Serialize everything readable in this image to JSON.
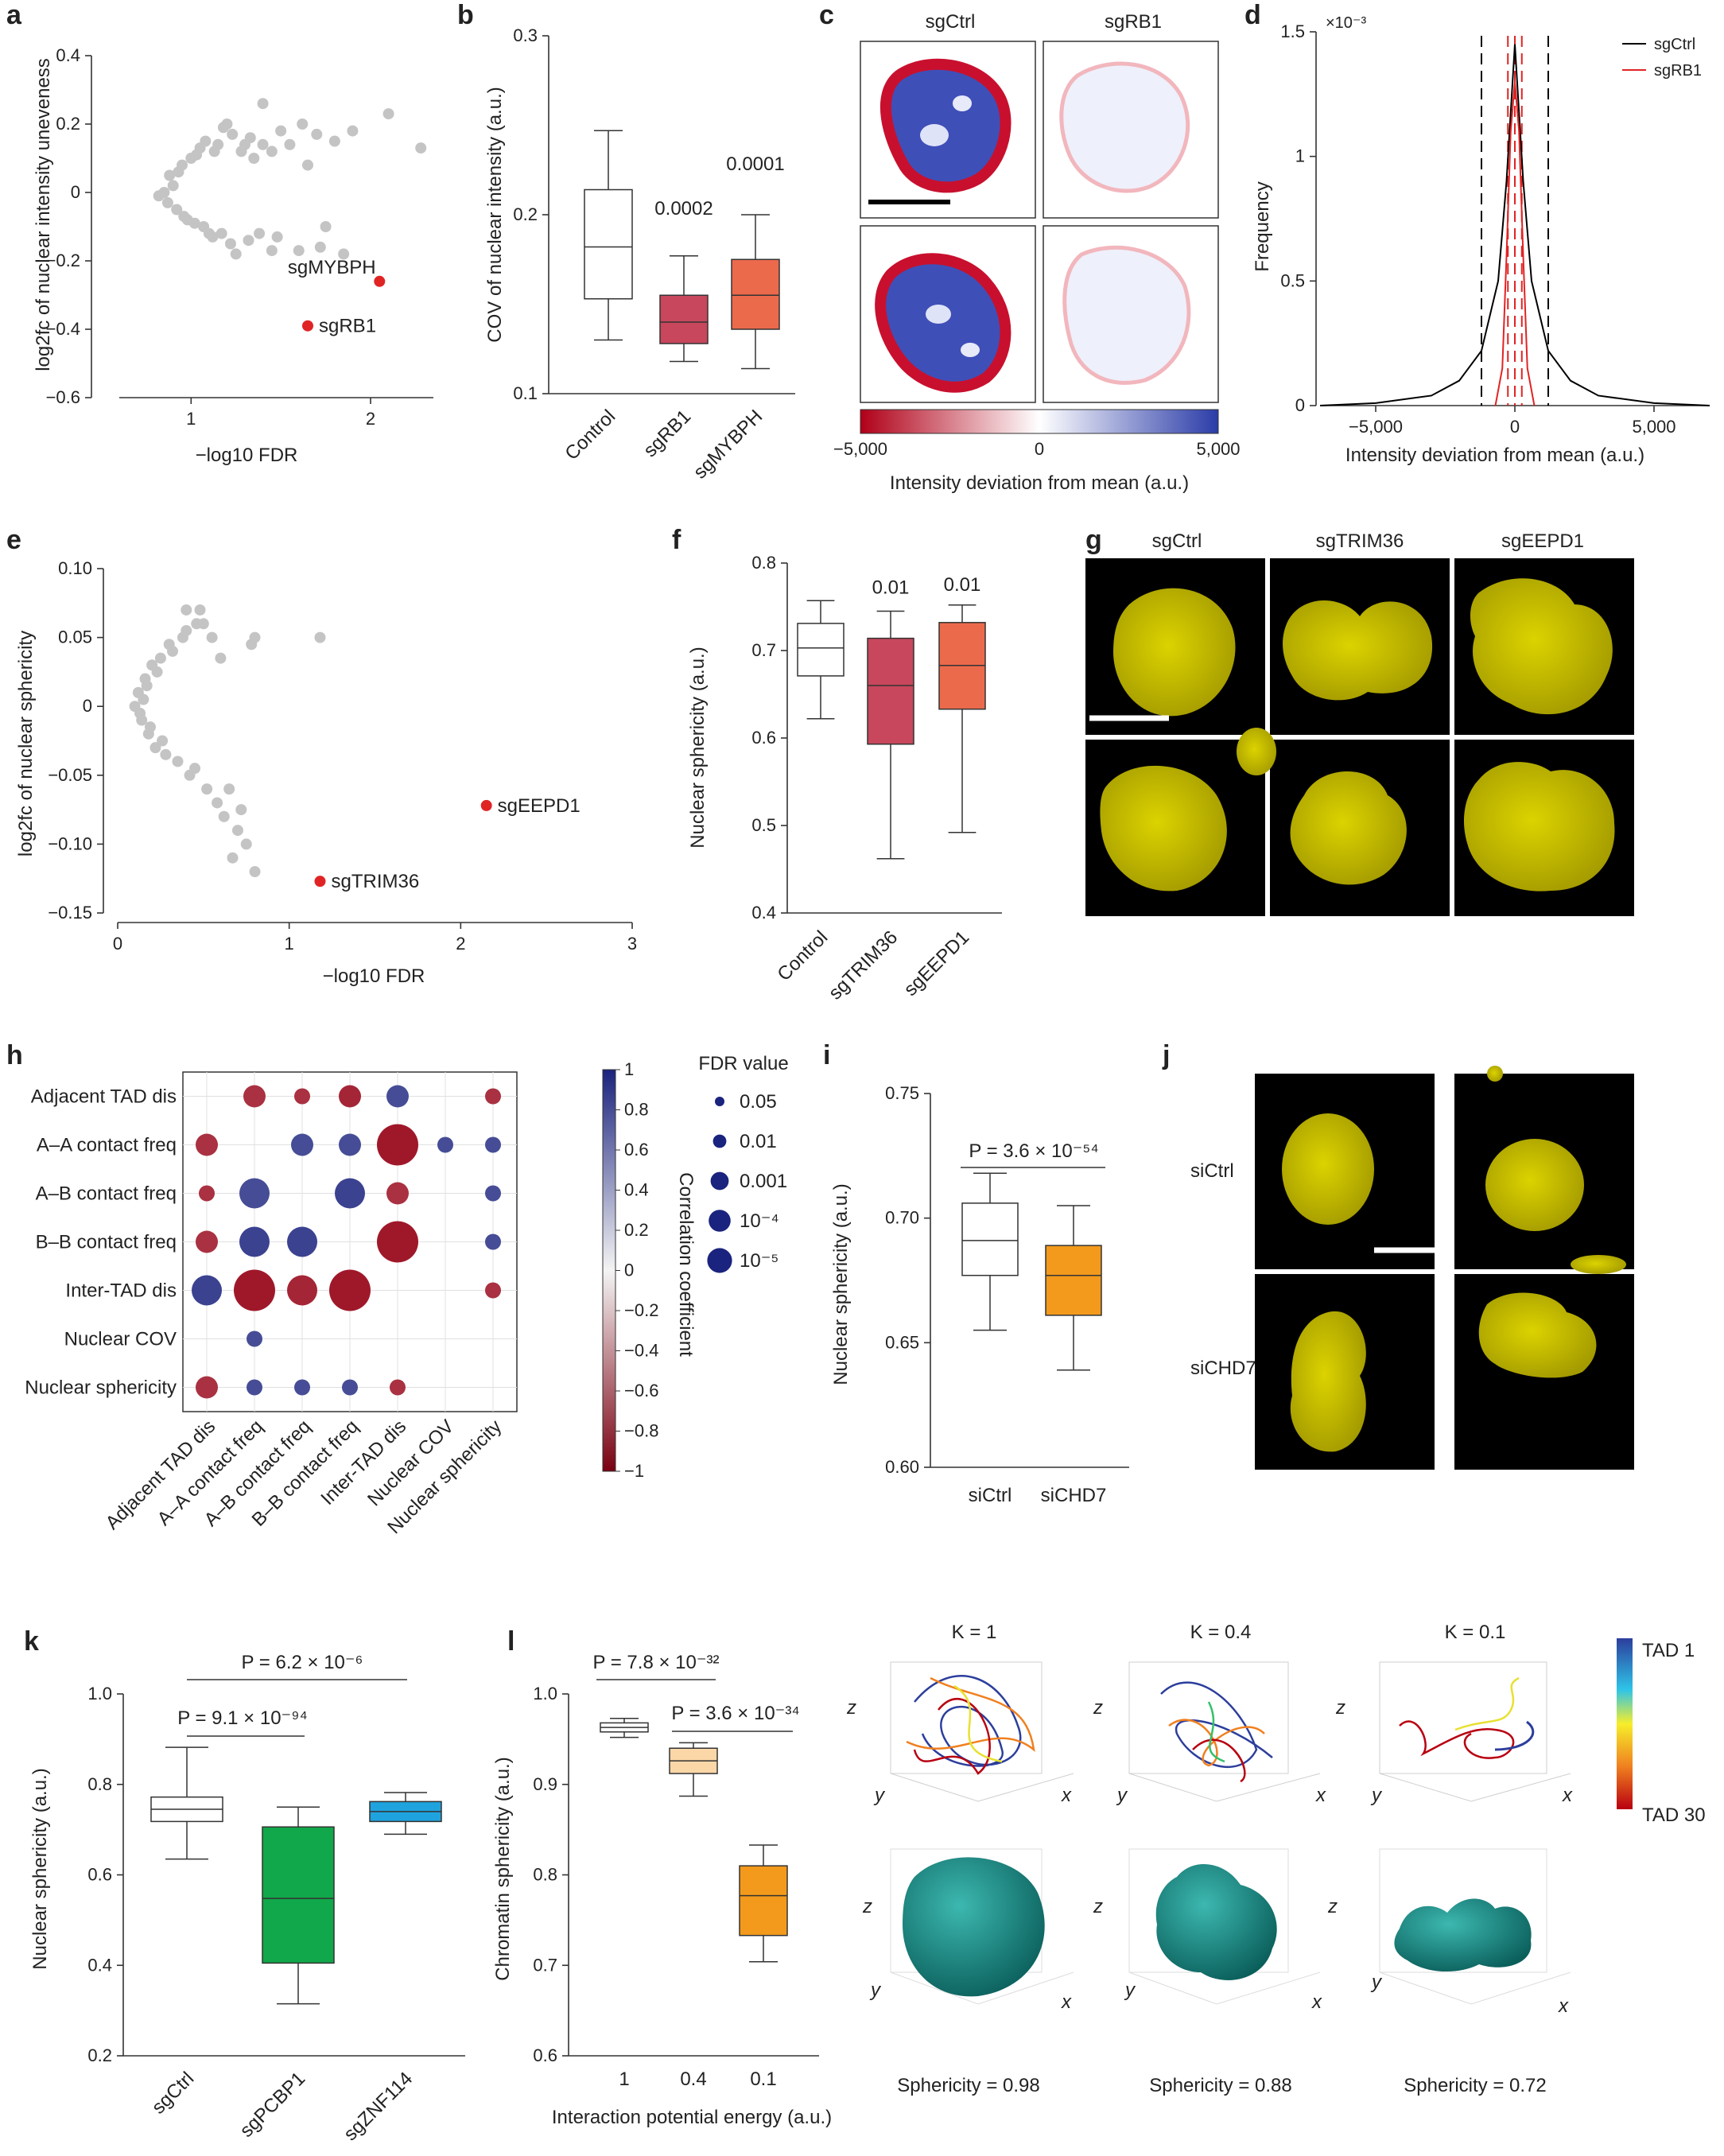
{
  "colors": {
    "grey_point": "#c4c4c4",
    "hit": "#e02424",
    "box_rb1": "#c8475c",
    "box_mybph": "#ec6a4c",
    "box_chd7": "#f39a1c",
    "box_pcbp1": "#10a84a",
    "box_znf114": "#1fa3de",
    "teal": "#16807c",
    "sgctrl_line": "#000000",
    "sgrb1_line": "#e02424"
  },
  "panels": {
    "a": {
      "label": "a",
      "ylabel": "log2fc of nuclear intensity uneveness",
      "xlabel": "−log10 FDR",
      "hits": [
        {
          "name": "sgMYBPH"
        },
        {
          "name": "sgRB1"
        }
      ],
      "xticks": [
        "1",
        "2"
      ],
      "yticks": [
        "0.4",
        "0.2",
        "0",
        "−0.2",
        "−0.4",
        "−0.6"
      ]
    },
    "b": {
      "label": "b",
      "ylabel": "COV of nuclear intensity (a.u.)",
      "yticks": [
        "0.3",
        "0.2",
        "0.1"
      ],
      "pvals": [
        "0.0002",
        "0.0001"
      ]
    },
    "c": {
      "label": "c",
      "cols": [
        "sgCtrl",
        "sgRB1"
      ],
      "cbar_ticks": [
        "−5,000",
        "0",
        "5,000"
      ],
      "cbar_label": "Intensity deviation from mean (a.u.)"
    },
    "d": {
      "label": "d",
      "ylabel": "Frequency",
      "xlabel": "Intensity deviation from mean (a.u.)",
      "multiplier": "×10⁻³",
      "yticks": [
        "1.5",
        "1",
        "0.5",
        "0"
      ],
      "xticks": [
        "−5,000",
        "0",
        "5,000"
      ],
      "legend": [
        "sgCtrl",
        "sgRB1"
      ]
    },
    "e": {
      "label": "e",
      "ylabel": "log2fc of nuclear sphericity",
      "xlabel": "−log10 FDR",
      "hits": [
        {
          "name": "sgEEPD1"
        },
        {
          "name": "sgTRIM36"
        }
      ],
      "xticks": [
        "0",
        "1",
        "2",
        "3"
      ],
      "yticks": [
        "0.10",
        "0.05",
        "0",
        "−0.05",
        "−0.10",
        "−0.15"
      ]
    },
    "f": {
      "label": "f",
      "ylabel": "Nuclear sphericity (a.u.)",
      "yticks": [
        "0.8",
        "0.7",
        "0.6",
        "0.5",
        "0.4"
      ],
      "pvals": [
        "0.01",
        "0.01"
      ]
    },
    "g": {
      "label": "g",
      "cols": [
        "sgCtrl",
        "sgTRIM36",
        "sgEEPD1"
      ]
    },
    "h": {
      "label": "h",
      "rows": [
        "Adjacent TAD dis",
        "A–A contact freq",
        "A–B contact freq",
        "B–B contact freq",
        "Inter-TAD dis",
        "Nuclear COV",
        "Nuclear sphericity"
      ],
      "cols": [
        "Adjacent TAD dis",
        "A–A contact freq",
        "A–B contact freq",
        "B–B contact freq",
        "Inter-TAD dis",
        "Nuclear COV",
        "Nuclear sphericity"
      ],
      "cbar_ticks": [
        "1",
        "0.8",
        "0.6",
        "0.4",
        "0.2",
        "0",
        "−0.2",
        "−0.4",
        "−0.6",
        "−0.8",
        "−1"
      ],
      "cbar_label": "Correlation coefficient",
      "fdr_title": "FDR value",
      "fdr_levels": [
        "0.05",
        "0.01",
        "0.001",
        "10⁻⁴",
        "10⁻⁵"
      ]
    },
    "i": {
      "label": "i",
      "ylabel": "Nuclear sphericity (a.u.)",
      "yticks": [
        "0.75",
        "0.70",
        "0.65",
        "0.60"
      ],
      "pval": "P = 3.6 × 10⁻⁵⁴"
    },
    "j": {
      "label": "j",
      "rows": [
        "siCtrl",
        "siCHD7"
      ]
    },
    "k": {
      "label": "k",
      "ylabel": "Nuclear sphericity (a.u.)",
      "yticks": [
        "1.0",
        "0.8",
        "0.6",
        "0.4",
        "0.2"
      ],
      "pvals": [
        "P = 6.2 × 10⁻⁶",
        "P = 9.1 × 10⁻⁹⁴"
      ]
    },
    "l": {
      "label": "l",
      "ylabel": "Chromatin sphericity (a.u.)",
      "xlabel": "Interaction potential energy (a.u.)",
      "yticks": [
        "1.0",
        "0.9",
        "0.8",
        "0.7",
        "0.6"
      ],
      "pvals": [
        "P = 7.8 × 10⁻³²",
        "P = 3.6 × 10⁻³⁴"
      ]
    },
    "sim": {
      "titles": [
        "K = 1",
        "K = 0.4",
        "K = 0.1"
      ],
      "sphericity": [
        "Sphericity = 0.98",
        "Sphericity = 0.88",
        "Sphericity = 0.72"
      ],
      "tad_top": "TAD 1",
      "tad_bottom": "TAD 30"
    }
  },
  "chart_data": [
    {
      "type": "scatter",
      "panel": "a",
      "xlabel": "−log10 FDR",
      "ylabel": "log2fc of nuclear intensity uneveness",
      "xlim": [
        0.6,
        2.35
      ],
      "ylim": [
        -0.6,
        0.4
      ],
      "highlight": [
        {
          "name": "sgMYBPH",
          "x": 2.05,
          "y": -0.26
        },
        {
          "name": "sgRB1",
          "x": 1.65,
          "y": -0.39
        }
      ],
      "points": [
        [
          0.9,
          0.02
        ],
        [
          0.85,
          0.0
        ],
        [
          0.82,
          -0.01
        ],
        [
          0.88,
          0.05
        ],
        [
          0.92,
          -0.05
        ],
        [
          0.95,
          0.08
        ],
        [
          1.0,
          0.1
        ],
        [
          0.98,
          -0.08
        ],
        [
          1.02,
          -0.09
        ],
        [
          1.05,
          0.13
        ],
        [
          1.08,
          0.15
        ],
        [
          1.1,
          -0.12
        ],
        [
          1.12,
          -0.13
        ],
        [
          1.15,
          0.14
        ],
        [
          1.18,
          0.19
        ],
        [
          1.2,
          0.2
        ],
        [
          1.22,
          -0.15
        ],
        [
          1.25,
          -0.18
        ],
        [
          1.28,
          0.12
        ],
        [
          1.3,
          0.14
        ],
        [
          1.32,
          -0.14
        ],
        [
          1.35,
          0.1
        ],
        [
          1.4,
          0.14
        ],
        [
          1.45,
          0.12
        ],
        [
          1.48,
          -0.13
        ],
        [
          1.5,
          0.18
        ],
        [
          1.55,
          0.14
        ],
        [
          1.6,
          -0.17
        ],
        [
          1.62,
          0.2
        ],
        [
          1.65,
          0.08
        ],
        [
          1.7,
          0.17
        ],
        [
          1.72,
          -0.16
        ],
        [
          1.75,
          -0.1
        ],
        [
          1.8,
          0.15
        ],
        [
          1.85,
          -0.18
        ],
        [
          1.9,
          0.18
        ],
        [
          2.1,
          0.23
        ],
        [
          2.28,
          0.13
        ],
        [
          1.4,
          0.26
        ],
        [
          1.45,
          -0.17
        ],
        [
          0.87,
          -0.03
        ],
        [
          0.93,
          0.06
        ],
        [
          0.96,
          -0.07
        ],
        [
          1.03,
          0.11
        ],
        [
          1.07,
          -0.1
        ],
        [
          1.13,
          0.12
        ],
        [
          1.17,
          -0.12
        ],
        [
          1.23,
          0.17
        ],
        [
          1.33,
          0.16
        ],
        [
          1.38,
          -0.12
        ]
      ]
    },
    {
      "type": "box",
      "panel": "b",
      "categories": [
        "Control",
        "sgRB1",
        "sgMYBPH"
      ],
      "ylabel": "COV of nuclear intensity (a.u.)",
      "ylim": [
        0.1,
        0.3
      ],
      "boxes": [
        {
          "whislo": 0.13,
          "q1": 0.153,
          "med": 0.182,
          "q3": 0.214,
          "whishi": 0.247
        },
        {
          "whislo": 0.118,
          "q1": 0.128,
          "med": 0.14,
          "q3": 0.155,
          "whishi": 0.177
        },
        {
          "whislo": 0.114,
          "q1": 0.136,
          "med": 0.155,
          "q3": 0.175,
          "whishi": 0.2
        }
      ]
    },
    {
      "type": "line",
      "panel": "d",
      "xlabel": "Intensity deviation from mean (a.u.)",
      "ylabel": "Frequency",
      "xlim": [
        -7000,
        7000
      ],
      "ylim": [
        0,
        0.0015
      ],
      "series": [
        {
          "name": "sgCtrl",
          "x": [
            -7000,
            -5000,
            -3000,
            -2000,
            -1200,
            -600,
            -300,
            0,
            300,
            600,
            1200,
            2000,
            3000,
            5000,
            7000
          ],
          "y": [
            0.0,
            1e-05,
            4e-05,
            0.0001,
            0.00022,
            0.0005,
            0.0009,
            0.00145,
            0.0009,
            0.0005,
            0.00022,
            0.0001,
            4e-05,
            1e-05,
            0.0
          ]
        },
        {
          "name": "sgRB1",
          "x": [
            -700,
            -450,
            -300,
            -150,
            0,
            150,
            300,
            450,
            700
          ],
          "y": [
            0.0,
            0.00015,
            0.0006,
            0.0011,
            0.0013,
            0.0011,
            0.0006,
            0.00015,
            0.0
          ]
        }
      ],
      "vlines": [
        -1200,
        1200,
        -250,
        250,
        0
      ]
    },
    {
      "type": "scatter",
      "panel": "e",
      "xlabel": "−log10 FDR",
      "ylabel": "log2fc of nuclear sphericity",
      "xlim": [
        0,
        3
      ],
      "ylim": [
        -0.15,
        0.1
      ],
      "highlight": [
        {
          "name": "sgEEPD1",
          "x": 2.15,
          "y": -0.072
        },
        {
          "name": "sgTRIM36",
          "x": 1.18,
          "y": -0.127
        }
      ],
      "points": [
        [
          0.1,
          0.0
        ],
        [
          0.12,
          0.01
        ],
        [
          0.14,
          -0.01
        ],
        [
          0.16,
          0.02
        ],
        [
          0.18,
          -0.02
        ],
        [
          0.2,
          0.03
        ],
        [
          0.22,
          -0.03
        ],
        [
          0.25,
          0.035
        ],
        [
          0.28,
          -0.035
        ],
        [
          0.3,
          0.045
        ],
        [
          0.35,
          -0.04
        ],
        [
          0.38,
          0.05
        ],
        [
          0.4,
          0.055
        ],
        [
          0.45,
          -0.045
        ],
        [
          0.5,
          0.06
        ],
        [
          0.52,
          -0.06
        ],
        [
          0.55,
          0.05
        ],
        [
          0.58,
          -0.07
        ],
        [
          0.6,
          0.035
        ],
        [
          0.62,
          -0.08
        ],
        [
          0.65,
          -0.06
        ],
        [
          0.7,
          -0.09
        ],
        [
          0.75,
          -0.1
        ],
        [
          0.8,
          -0.12
        ],
        [
          0.78,
          0.045
        ],
        [
          0.8,
          0.05
        ],
        [
          0.48,
          0.07
        ],
        [
          0.4,
          0.07
        ],
        [
          0.67,
          -0.11
        ],
        [
          0.72,
          -0.075
        ],
        [
          1.18,
          0.05
        ],
        [
          0.15,
          0.005
        ],
        [
          0.13,
          -0.005
        ],
        [
          0.17,
          0.015
        ],
        [
          0.19,
          -0.015
        ],
        [
          0.23,
          0.025
        ],
        [
          0.26,
          -0.025
        ],
        [
          0.32,
          0.04
        ],
        [
          0.42,
          -0.05
        ],
        [
          0.46,
          0.06
        ]
      ]
    },
    {
      "type": "box",
      "panel": "f",
      "categories": [
        "Control",
        "sgTRIM36",
        "sgEEPD1"
      ],
      "ylabel": "Nuclear sphericity (a.u.)",
      "ylim": [
        0.4,
        0.8
      ],
      "boxes": [
        {
          "whislo": 0.622,
          "q1": 0.671,
          "med": 0.703,
          "q3": 0.731,
          "whishi": 0.757
        },
        {
          "whislo": 0.462,
          "q1": 0.593,
          "med": 0.66,
          "q3": 0.714,
          "whishi": 0.745
        },
        {
          "whislo": 0.492,
          "q1": 0.633,
          "med": 0.683,
          "q3": 0.732,
          "whishi": 0.752
        }
      ]
    },
    {
      "type": "heatmap",
      "panel": "h",
      "rows": [
        "Adjacent TAD dis",
        "A–A contact freq",
        "A–B contact freq",
        "B–B contact freq",
        "Inter-TAD dis",
        "Nuclear COV",
        "Nuclear sphericity"
      ],
      "cols": [
        "Adjacent TAD dis",
        "A–A contact freq",
        "A–B contact freq",
        "B–B contact freq",
        "Inter-TAD dis",
        "Nuclear COV",
        "Nuclear sphericity"
      ],
      "color_range": [
        -1,
        1
      ],
      "cells": [
        {
          "r": 0,
          "c": 1,
          "corr": -0.8,
          "fdr": "0.01"
        },
        {
          "r": 0,
          "c": 2,
          "corr": -0.8,
          "fdr": "0.05"
        },
        {
          "r": 0,
          "c": 3,
          "corr": -0.85,
          "fdr": "0.01"
        },
        {
          "r": 0,
          "c": 4,
          "corr": 0.8,
          "fdr": "0.01"
        },
        {
          "r": 0,
          "c": 6,
          "corr": -0.8,
          "fdr": "0.05"
        },
        {
          "r": 1,
          "c": 0,
          "corr": -0.8,
          "fdr": "0.01"
        },
        {
          "r": 1,
          "c": 2,
          "corr": 0.8,
          "fdr": "0.01"
        },
        {
          "r": 1,
          "c": 3,
          "corr": 0.8,
          "fdr": "0.01"
        },
        {
          "r": 1,
          "c": 4,
          "corr": -0.9,
          "fdr": "10⁻⁵"
        },
        {
          "r": 1,
          "c": 5,
          "corr": 0.8,
          "fdr": "0.05"
        },
        {
          "r": 1,
          "c": 6,
          "corr": 0.8,
          "fdr": "0.05"
        },
        {
          "r": 2,
          "c": 0,
          "corr": -0.8,
          "fdr": "0.05"
        },
        {
          "r": 2,
          "c": 1,
          "corr": 0.8,
          "fdr": "0.001"
        },
        {
          "r": 2,
          "c": 3,
          "corr": 0.85,
          "fdr": "0.001"
        },
        {
          "r": 2,
          "c": 4,
          "corr": -0.8,
          "fdr": "0.01"
        },
        {
          "r": 2,
          "c": 6,
          "corr": 0.8,
          "fdr": "0.05"
        },
        {
          "r": 3,
          "c": 0,
          "corr": -0.8,
          "fdr": "0.01"
        },
        {
          "r": 3,
          "c": 1,
          "corr": 0.85,
          "fdr": "0.001"
        },
        {
          "r": 3,
          "c": 2,
          "corr": 0.85,
          "fdr": "0.001"
        },
        {
          "r": 3,
          "c": 4,
          "corr": -0.9,
          "fdr": "10⁻⁵"
        },
        {
          "r": 3,
          "c": 6,
          "corr": 0.8,
          "fdr": "0.05"
        },
        {
          "r": 4,
          "c": 0,
          "corr": 0.85,
          "fdr": "0.001"
        },
        {
          "r": 4,
          "c": 1,
          "corr": -0.9,
          "fdr": "10⁻⁵"
        },
        {
          "r": 4,
          "c": 2,
          "corr": -0.85,
          "fdr": "0.001"
        },
        {
          "r": 4,
          "c": 3,
          "corr": -0.9,
          "fdr": "10⁻⁵"
        },
        {
          "r": 4,
          "c": 6,
          "corr": -0.8,
          "fdr": "0.05"
        },
        {
          "r": 5,
          "c": 1,
          "corr": 0.8,
          "fdr": "0.05"
        },
        {
          "r": 6,
          "c": 0,
          "corr": -0.8,
          "fdr": "0.01"
        },
        {
          "r": 6,
          "c": 1,
          "corr": 0.8,
          "fdr": "0.05"
        },
        {
          "r": 6,
          "c": 2,
          "corr": 0.8,
          "fdr": "0.05"
        },
        {
          "r": 6,
          "c": 3,
          "corr": 0.8,
          "fdr": "0.05"
        },
        {
          "r": 6,
          "c": 4,
          "corr": -0.8,
          "fdr": "0.05"
        }
      ]
    },
    {
      "type": "box",
      "panel": "i",
      "categories": [
        "siCtrl",
        "siCHD7"
      ],
      "ylabel": "Nuclear sphericity (a.u.)",
      "ylim": [
        0.6,
        0.75
      ],
      "boxes": [
        {
          "whislo": 0.655,
          "q1": 0.677,
          "med": 0.691,
          "q3": 0.706,
          "whishi": 0.718
        },
        {
          "whislo": 0.639,
          "q1": 0.661,
          "med": 0.677,
          "q3": 0.689,
          "whishi": 0.705
        }
      ]
    },
    {
      "type": "box",
      "panel": "k",
      "categories": [
        "sgCtrl",
        "sgPCBP1",
        "sgZNF114"
      ],
      "ylabel": "Nuclear sphericity (a.u.)",
      "ylim": [
        0.2,
        1.0
      ],
      "boxes": [
        {
          "whislo": 0.635,
          "q1": 0.718,
          "med": 0.745,
          "q3": 0.772,
          "whishi": 0.882
        },
        {
          "whislo": 0.315,
          "q1": 0.405,
          "med": 0.548,
          "q3": 0.706,
          "whishi": 0.75
        },
        {
          "whislo": 0.69,
          "q1": 0.718,
          "med": 0.74,
          "q3": 0.762,
          "whishi": 0.782
        }
      ]
    },
    {
      "type": "box",
      "panel": "l",
      "categories": [
        "1",
        "0.4",
        "0.1"
      ],
      "xlabel": "Interaction potential energy (a.u.)",
      "ylabel": "Chromatin sphericity (a.u.)",
      "ylim": [
        0.6,
        1.0
      ],
      "boxes": [
        {
          "whislo": 0.952,
          "q1": 0.958,
          "med": 0.963,
          "q3": 0.968,
          "whishi": 0.973
        },
        {
          "whislo": 0.887,
          "q1": 0.912,
          "med": 0.926,
          "q3": 0.94,
          "whishi": 0.946
        },
        {
          "whislo": 0.704,
          "q1": 0.733,
          "med": 0.777,
          "q3": 0.81,
          "whishi": 0.833
        }
      ]
    }
  ]
}
